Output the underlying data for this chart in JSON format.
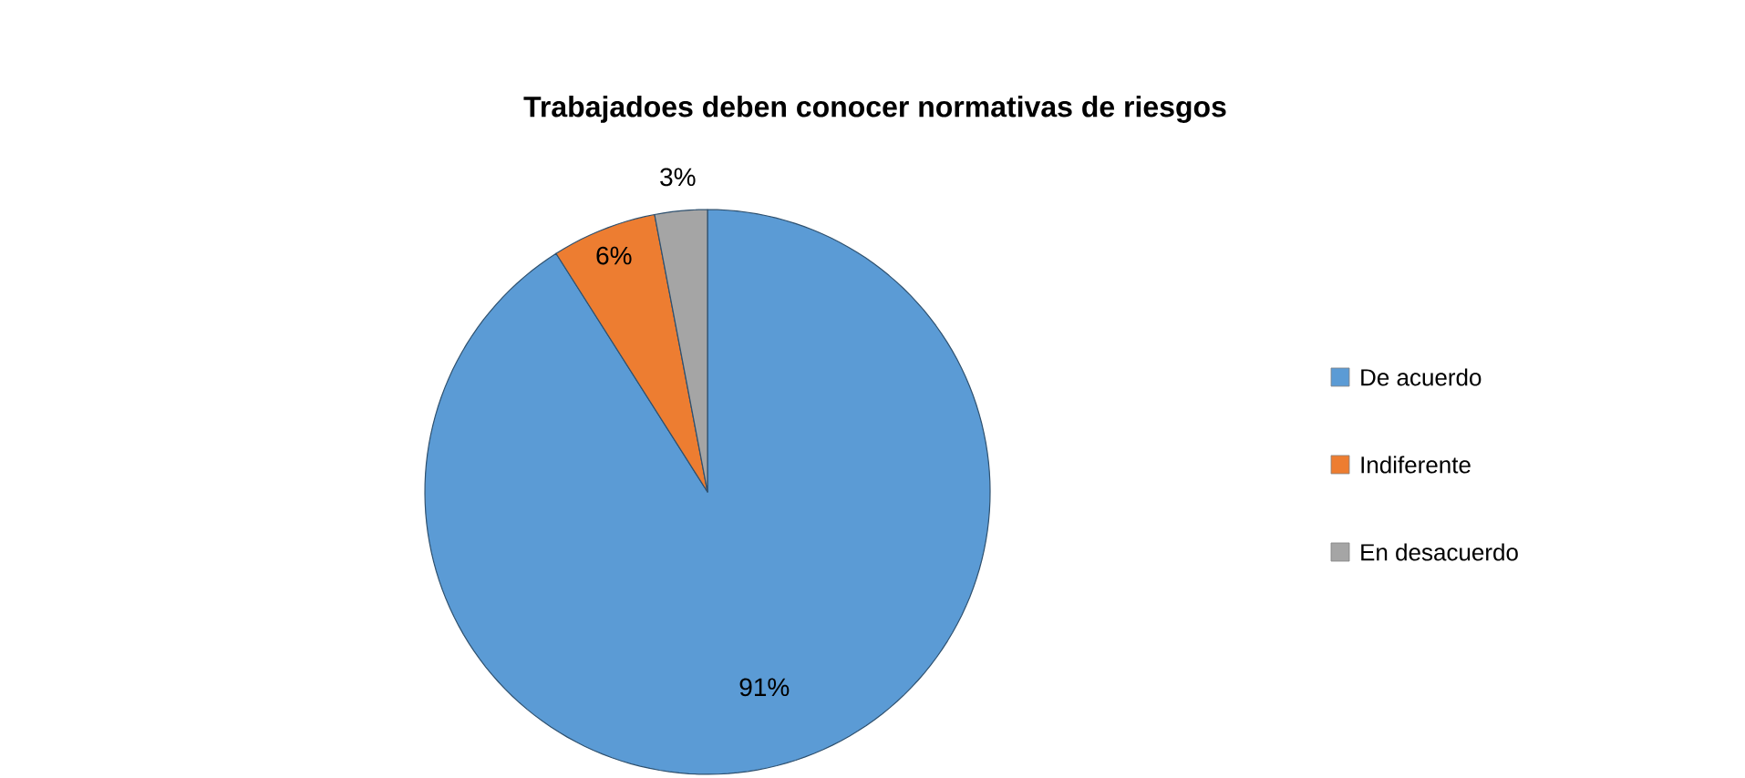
{
  "chart_data": {
    "type": "pie",
    "title": "Trabajadoes deben conocer normativas de riesgos",
    "categories": [
      "De acuerdo",
      "Indiferente",
      "En desacuerdo"
    ],
    "values": [
      91,
      6,
      3
    ],
    "colors": [
      "#5b9bd5",
      "#ed7d31",
      "#a5a5a5"
    ],
    "value_labels": [
      "91%",
      "6%",
      "3%"
    ],
    "legend": "right"
  }
}
